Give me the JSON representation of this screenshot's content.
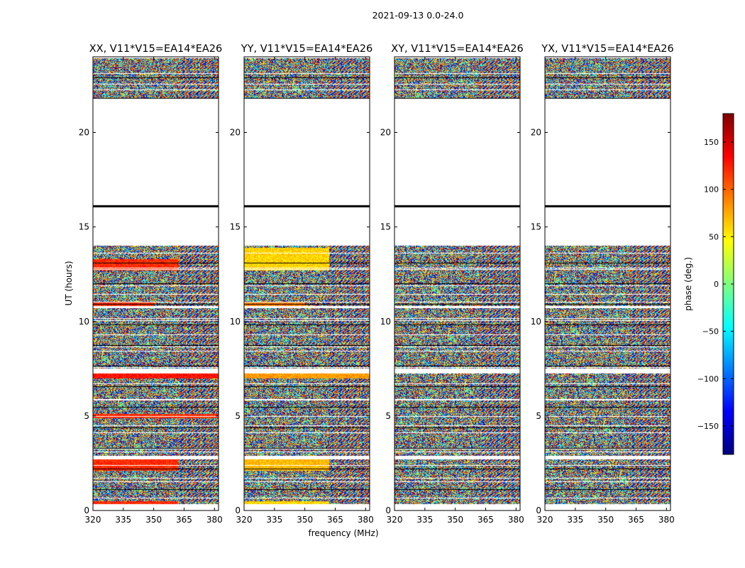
{
  "figure": {
    "suptitle": "2021-09-13 0.0-24.0",
    "xlabel": "frequency (MHz)",
    "ylabel": "UT (hours)"
  },
  "colorbar": {
    "label": "phase (deg.)",
    "range": [
      -180,
      180
    ],
    "ticks": [
      150,
      100,
      50,
      0,
      -50,
      -100,
      -150
    ],
    "tick_labels": [
      "150",
      "100",
      "50",
      "0",
      "−50",
      "−100",
      "−150"
    ],
    "colormap": "jet",
    "colors": [
      "#00007f",
      "#0000ff",
      "#007fff",
      "#00ffff",
      "#7fff7f",
      "#ffff00",
      "#ff7f00",
      "#ff0000",
      "#7f0000"
    ]
  },
  "chart_data": [
    {
      "type": "heatmap",
      "title": "XX, V11*V15=EA14*EA26",
      "xlabel": "",
      "ylabel": "UT (hours)",
      "xlim": [
        320,
        382
      ],
      "ylim": [
        0,
        24
      ],
      "xticks": [
        320,
        335,
        350,
        365,
        380
      ],
      "yticks": [
        0,
        5,
        10,
        15,
        20
      ],
      "value": "phase (deg.)",
      "value_range": [
        -180,
        180
      ],
      "data_intervals_ut": [
        [
          0.3,
          2.7
        ],
        [
          2.9,
          7.3
        ],
        [
          7.5,
          10.7
        ],
        [
          10.8,
          14.0
        ],
        [
          21.8,
          24.0
        ]
      ],
      "blank_intervals_ut": [
        [
          14.0,
          21.8
        ]
      ],
      "black_band_ut": 16.1,
      "biased_regions": [
        {
          "ut": [
            0.3,
            0.5
          ],
          "freq": [
            320,
            362
          ],
          "phase_deg": 120
        },
        {
          "ut": [
            2.1,
            2.7
          ],
          "freq": [
            320,
            362
          ],
          "phase_deg": 120
        },
        {
          "ut": [
            4.9,
            5.1
          ],
          "freq": [
            320,
            382
          ],
          "phase_deg": 120
        },
        {
          "ut": [
            7.0,
            7.3
          ],
          "freq": [
            320,
            382
          ],
          "phase_deg": 130
        },
        {
          "ut": [
            10.8,
            11.0
          ],
          "freq": [
            320,
            350
          ],
          "phase_deg": 120
        },
        {
          "ut": [
            12.7,
            13.3
          ],
          "freq": [
            320,
            362
          ],
          "phase_deg": 120
        }
      ]
    },
    {
      "type": "heatmap",
      "title": "YY, V11*V15=EA14*EA26",
      "xlabel": "frequency (MHz)",
      "ylabel": "",
      "xlim": [
        320,
        382
      ],
      "ylim": [
        0,
        24
      ],
      "xticks": [
        320,
        335,
        350,
        365,
        380
      ],
      "yticks": [
        0,
        5,
        10,
        15,
        20
      ],
      "value": "phase (deg.)",
      "value_range": [
        -180,
        180
      ],
      "data_intervals_ut": [
        [
          0.3,
          2.7
        ],
        [
          2.9,
          7.3
        ],
        [
          7.5,
          10.7
        ],
        [
          10.8,
          14.0
        ],
        [
          21.8,
          24.0
        ]
      ],
      "blank_intervals_ut": [
        [
          14.0,
          21.8
        ]
      ],
      "black_band_ut": 16.1,
      "biased_regions": [
        {
          "ut": [
            0.3,
            0.5
          ],
          "freq": [
            320,
            362
          ],
          "phase_deg": 60
        },
        {
          "ut": [
            2.1,
            2.7
          ],
          "freq": [
            320,
            362
          ],
          "phase_deg": 70
        },
        {
          "ut": [
            7.0,
            7.3
          ],
          "freq": [
            320,
            382
          ],
          "phase_deg": 80
        },
        {
          "ut": [
            10.8,
            11.0
          ],
          "freq": [
            320,
            350
          ],
          "phase_deg": 90
        },
        {
          "ut": [
            12.7,
            13.9
          ],
          "freq": [
            320,
            362
          ],
          "phase_deg": 60
        }
      ]
    },
    {
      "type": "heatmap",
      "title": "XY, V11*V15=EA14*EA26",
      "xlabel": "",
      "ylabel": "",
      "xlim": [
        320,
        382
      ],
      "ylim": [
        0,
        24
      ],
      "xticks": [
        320,
        335,
        350,
        365,
        380
      ],
      "yticks": [
        0,
        5,
        10,
        15,
        20
      ],
      "value": "phase (deg.)",
      "value_range": [
        -180,
        180
      ],
      "data_intervals_ut": [
        [
          0.3,
          2.7
        ],
        [
          2.9,
          7.3
        ],
        [
          7.5,
          10.7
        ],
        [
          10.8,
          14.0
        ],
        [
          21.8,
          24.0
        ]
      ],
      "blank_intervals_ut": [
        [
          14.0,
          21.8
        ]
      ],
      "black_band_ut": 16.1,
      "biased_regions": []
    },
    {
      "type": "heatmap",
      "title": "YX, V11*V15=EA14*EA26",
      "xlabel": "",
      "ylabel": "",
      "xlim": [
        320,
        382
      ],
      "ylim": [
        0,
        24
      ],
      "xticks": [
        320,
        335,
        350,
        365,
        380
      ],
      "yticks": [
        0,
        5,
        10,
        15,
        20
      ],
      "value": "phase (deg.)",
      "value_range": [
        -180,
        180
      ],
      "data_intervals_ut": [
        [
          0.3,
          2.7
        ],
        [
          2.9,
          7.3
        ],
        [
          7.5,
          10.7
        ],
        [
          10.8,
          14.0
        ],
        [
          21.8,
          24.0
        ]
      ],
      "blank_intervals_ut": [
        [
          14.0,
          21.8
        ]
      ],
      "black_band_ut": 16.1,
      "biased_regions": []
    }
  ]
}
